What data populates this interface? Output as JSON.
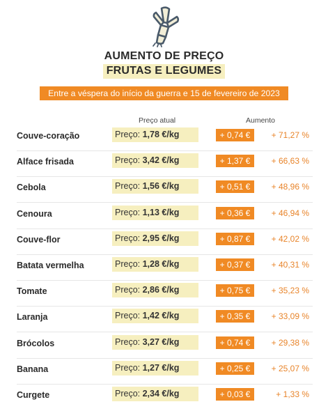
{
  "header": {
    "icon": "leek-icon",
    "title_line1": "AUMENTO DE PREÇO",
    "title_line2": "FRUTAS E LEGUMES",
    "subtitle": "Entre a véspera do início da guerra e 15 de fevereiro de 2023"
  },
  "columns": {
    "price": "Preço atual",
    "increase": "Aumento"
  },
  "colors": {
    "accent_orange": "#f08a24",
    "highlight_yellow": "#f6efbf",
    "percent_text": "#e8842a",
    "icon_outline": "#4a5a6a",
    "icon_fill": "#f2eed8"
  },
  "chart_data": {
    "type": "table",
    "title": "AUMENTO DE PREÇO FRUTAS E LEGUMES",
    "subtitle": "Entre a véspera do início da guerra e 15 de fevereiro de 2023",
    "columns": [
      "Preço atual",
      "Aumento"
    ],
    "rows": [
      {
        "name": "Couve-coração",
        "price_label": "Preço:",
        "price": "1,78 €/kg",
        "delta": "+ 0,74 €",
        "pct": "+ 71,27 %"
      },
      {
        "name": "Alface frisada",
        "price_label": "Preço:",
        "price": "3,42 €/kg",
        "delta": "+ 1,37 €",
        "pct": "+ 66,63 %"
      },
      {
        "name": "Cebola",
        "price_label": "Preço:",
        "price": "1,56 €/kg",
        "delta": "+ 0,51 €",
        "pct": "+ 48,96 %"
      },
      {
        "name": "Cenoura",
        "price_label": "Preço:",
        "price": "1,13 €/kg",
        "delta": "+ 0,36 €",
        "pct": "+ 46,94 %"
      },
      {
        "name": "Couve-flor",
        "price_label": "Preço:",
        "price": "2,95 €/kg",
        "delta": "+ 0,87 €",
        "pct": "+ 42,02 %"
      },
      {
        "name": "Batata vermelha",
        "price_label": "Preço:",
        "price": "1,28 €/kg",
        "delta": "+ 0,37 €",
        "pct": "+ 40,31 %"
      },
      {
        "name": "Tomate",
        "price_label": "Preço:",
        "price": "2,86 €/kg",
        "delta": "+ 0,75 €",
        "pct": "+ 35,23 %"
      },
      {
        "name": "Laranja",
        "price_label": "Preço:",
        "price": "1,42 €/kg",
        "delta": "+ 0,35 €",
        "pct": "+ 33,09 %"
      },
      {
        "name": "Brócolos",
        "price_label": "Preço:",
        "price": "3,27 €/kg",
        "delta": "+ 0,74 €",
        "pct": "+ 29,38 %"
      },
      {
        "name": "Banana",
        "price_label": "Preço:",
        "price": "1,27 €/kg",
        "delta": "+ 0,25 €",
        "pct": "+ 25,07 %"
      },
      {
        "name": "Curgete",
        "price_label": "Preço:",
        "price": "2,34 €/kg",
        "delta": "+ 0,03 €",
        "pct": "+ 1,33 %"
      }
    ]
  }
}
